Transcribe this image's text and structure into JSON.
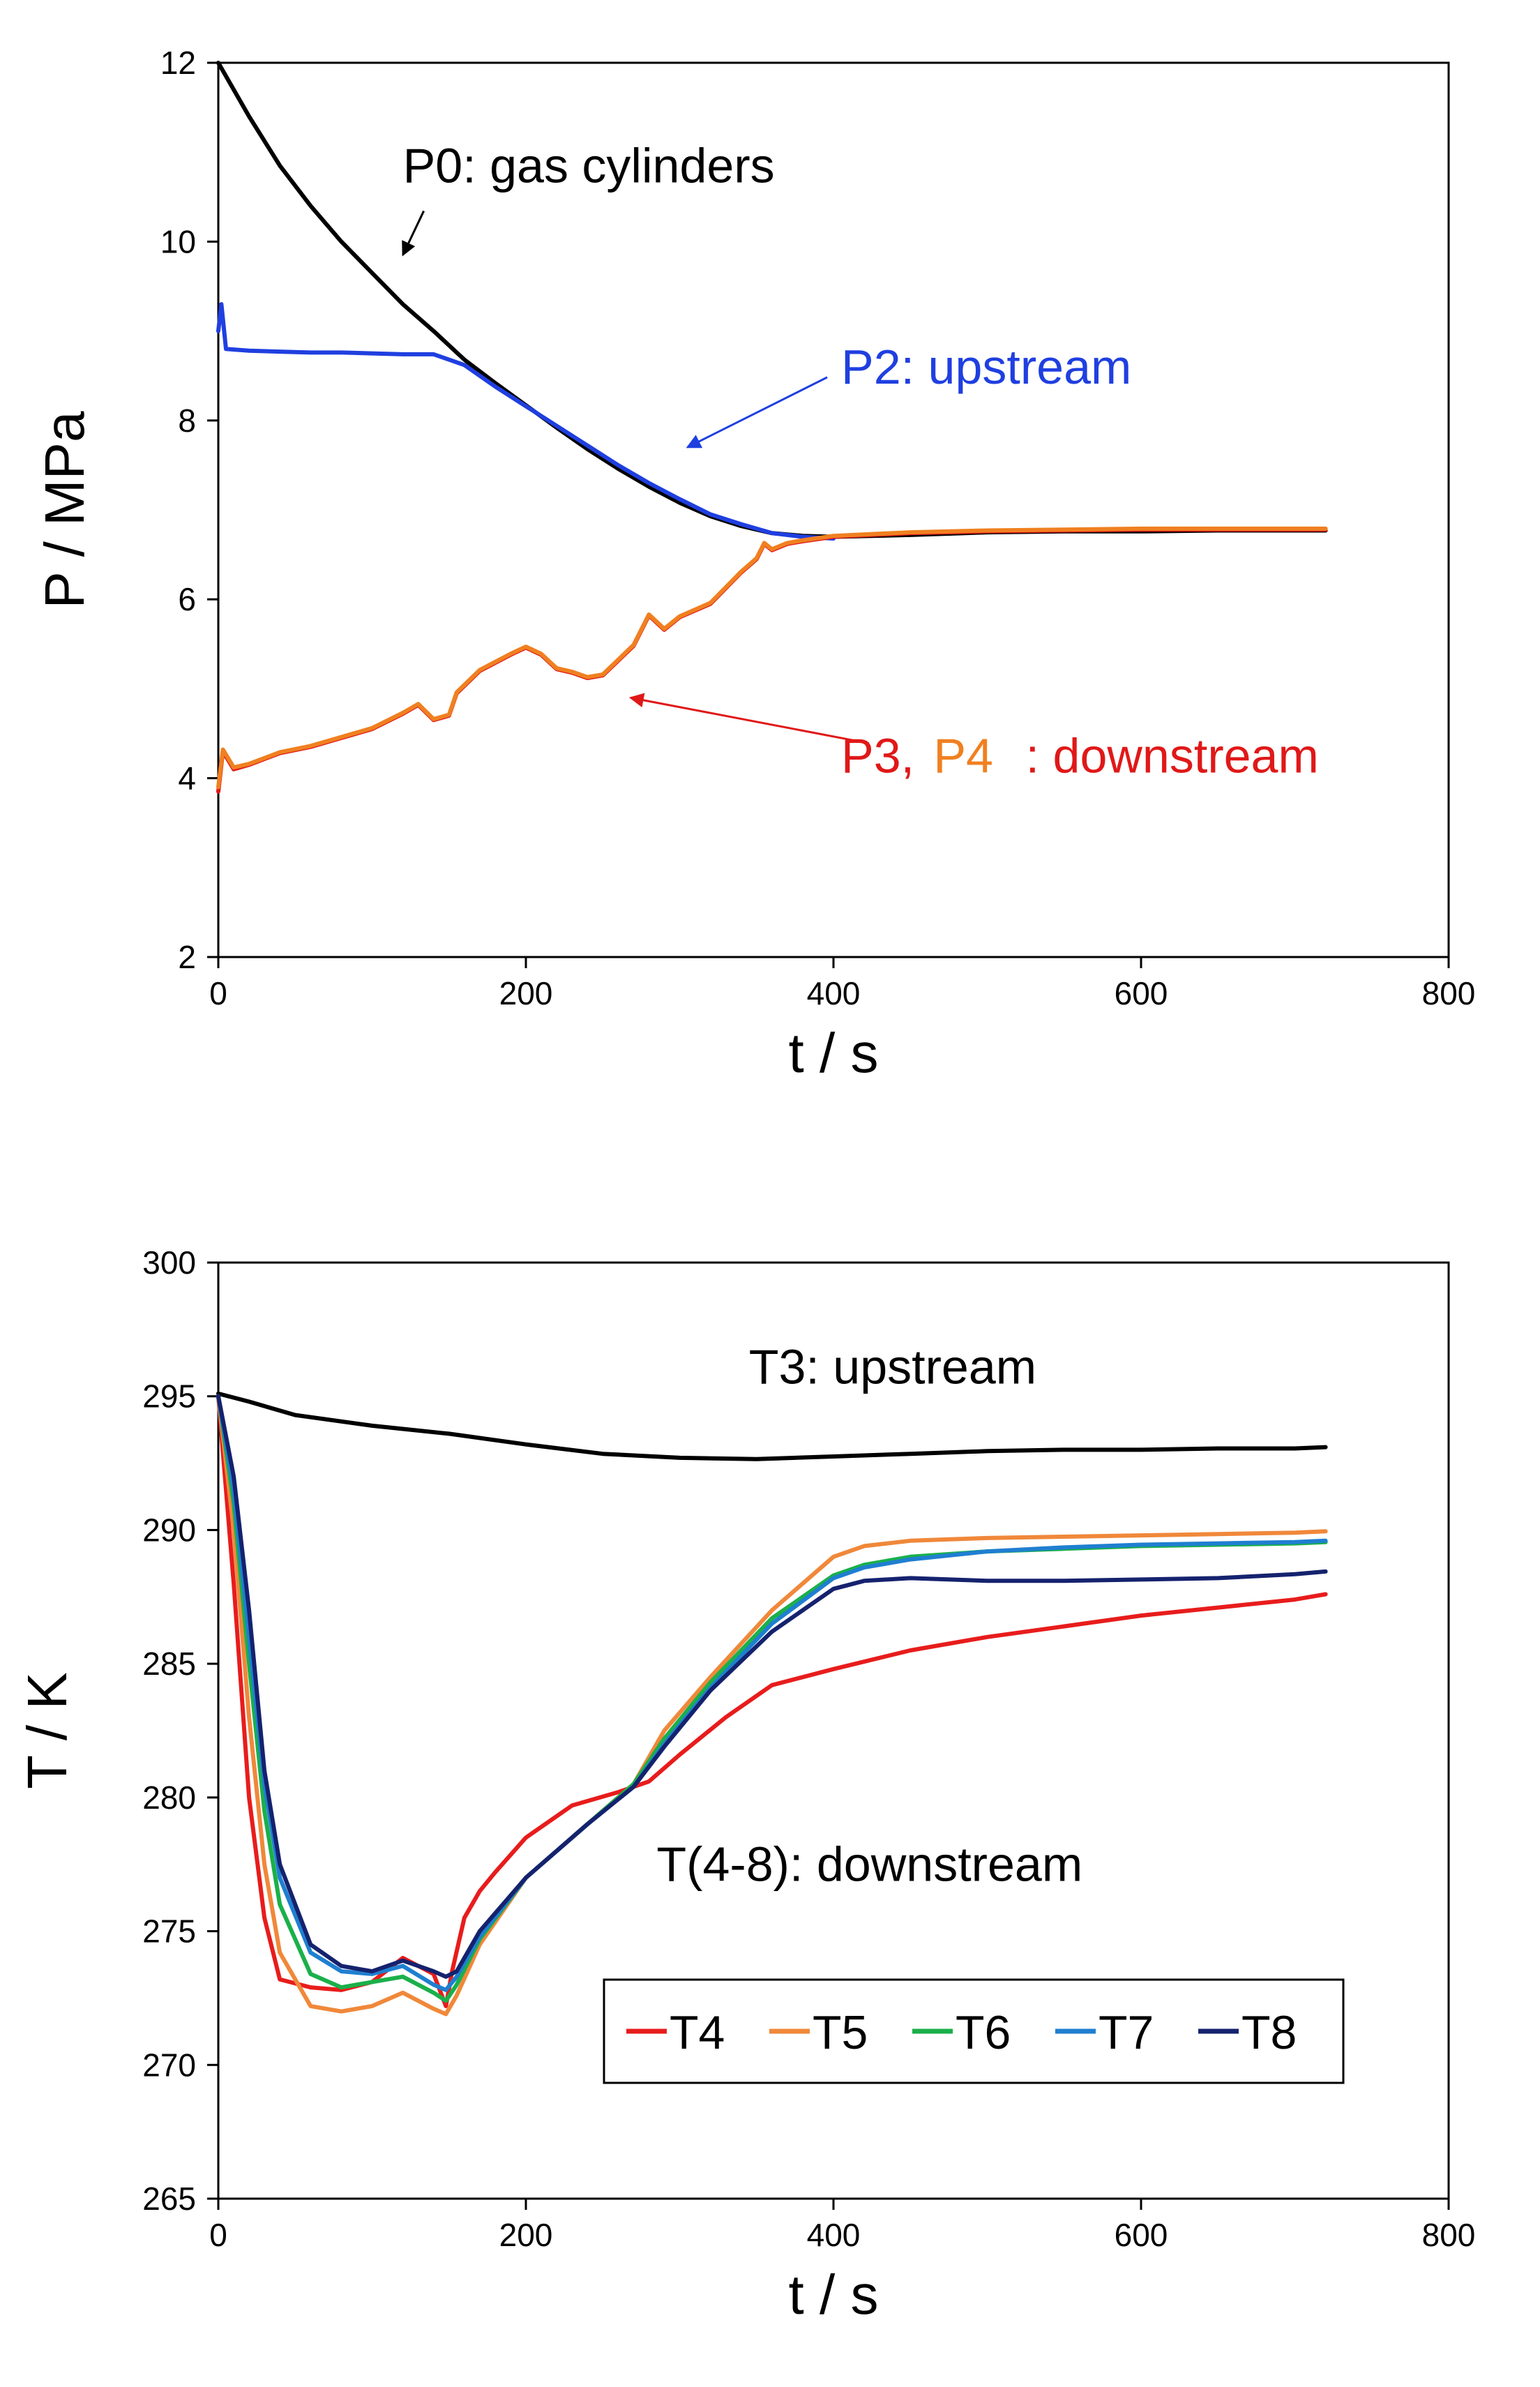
{
  "chart_data": [
    {
      "type": "line",
      "xlabel": "t / s",
      "ylabel": "P / MPa",
      "xlim": [
        0,
        800
      ],
      "ylim": [
        2,
        12
      ],
      "x_ticks": [
        0,
        200,
        400,
        600,
        800
      ],
      "y_ticks": [
        2,
        4,
        6,
        8,
        10,
        12
      ],
      "grid": false,
      "series": [
        {
          "name": "P0",
          "color": "#000000",
          "x": [
            0,
            20,
            40,
            60,
            80,
            100,
            120,
            140,
            160,
            180,
            200,
            220,
            240,
            260,
            280,
            300,
            320,
            340,
            360,
            380,
            400,
            450,
            500,
            550,
            600,
            650,
            700,
            720
          ],
          "y": [
            12.0,
            11.4,
            10.85,
            10.4,
            10.0,
            9.65,
            9.3,
            9.0,
            8.68,
            8.42,
            8.17,
            7.92,
            7.68,
            7.46,
            7.26,
            7.08,
            6.93,
            6.82,
            6.74,
            6.71,
            6.7,
            6.72,
            6.75,
            6.76,
            6.76,
            6.77,
            6.77,
            6.77
          ]
        },
        {
          "name": "P2",
          "color": "#1f3fe0",
          "x": [
            0,
            2,
            5,
            20,
            40,
            60,
            80,
            100,
            120,
            140,
            150,
            160,
            180,
            200,
            220,
            240,
            260,
            280,
            300,
            320,
            340,
            360,
            380,
            400
          ],
          "y": [
            9.0,
            9.3,
            8.8,
            8.78,
            8.77,
            8.76,
            8.76,
            8.75,
            8.74,
            8.74,
            8.68,
            8.62,
            8.38,
            8.16,
            7.94,
            7.72,
            7.5,
            7.3,
            7.12,
            6.95,
            6.84,
            6.74,
            6.7,
            6.68
          ]
        },
        {
          "name": "P3",
          "color": "#e01818",
          "x": [
            0,
            3,
            10,
            20,
            40,
            60,
            80,
            100,
            120,
            130,
            140,
            150,
            155,
            170,
            190,
            200,
            210,
            220,
            230,
            240,
            250,
            270,
            280,
            290,
            300,
            320,
            340,
            350,
            355,
            360,
            370,
            380,
            400,
            450,
            500,
            550,
            600,
            650,
            700,
            720
          ],
          "y": [
            3.85,
            4.3,
            4.1,
            4.15,
            4.28,
            4.35,
            4.45,
            4.55,
            4.72,
            4.82,
            4.65,
            4.7,
            4.95,
            5.2,
            5.38,
            5.46,
            5.38,
            5.22,
            5.18,
            5.12,
            5.15,
            5.48,
            5.82,
            5.66,
            5.8,
            5.95,
            6.3,
            6.45,
            6.62,
            6.55,
            6.62,
            6.65,
            6.7,
            6.74,
            6.76,
            6.77,
            6.78,
            6.78,
            6.78,
            6.78
          ]
        },
        {
          "name": "P4",
          "color": "#f08020",
          "x": [
            0,
            3,
            10,
            20,
            40,
            60,
            80,
            100,
            120,
            130,
            140,
            150,
            155,
            170,
            190,
            200,
            210,
            220,
            230,
            240,
            250,
            270,
            280,
            290,
            300,
            320,
            340,
            350,
            355,
            360,
            370,
            380,
            400,
            450,
            500,
            550,
            600,
            650,
            700,
            720
          ],
          "y": [
            3.9,
            4.32,
            4.12,
            4.16,
            4.29,
            4.36,
            4.46,
            4.56,
            4.73,
            4.83,
            4.66,
            4.71,
            4.96,
            5.21,
            5.39,
            5.47,
            5.39,
            5.23,
            5.19,
            5.13,
            5.16,
            5.49,
            5.83,
            5.67,
            5.81,
            5.96,
            6.31,
            6.46,
            6.63,
            6.56,
            6.63,
            6.66,
            6.71,
            6.75,
            6.77,
            6.78,
            6.79,
            6.79,
            6.79,
            6.79
          ]
        }
      ],
      "annotations": [
        {
          "text": "P0: gas cylinders",
          "color": "#000000",
          "x": 120,
          "y": 10.85,
          "arrow_to": [
            120,
            9.85
          ]
        },
        {
          "text": "P2: upstream",
          "color": "#1f3fe0",
          "x": 405,
          "y": 8.6,
          "arrow_to": [
            305,
            7.7
          ]
        },
        {
          "text": "P3,",
          "color": "#e01818",
          "x": 405,
          "y": 4.25
        },
        {
          "text": "P4",
          "color": "#f08020",
          "x": 465,
          "y": 4.25
        },
        {
          "text": ": downstream",
          "color": "#e01818",
          "x": 525,
          "y": 4.25,
          "arrow_to": [
            268,
            4.9
          ]
        }
      ]
    },
    {
      "type": "line",
      "xlabel": "t / s",
      "ylabel": "T / K",
      "xlim": [
        0,
        800
      ],
      "ylim": [
        265,
        300
      ],
      "x_ticks": [
        0,
        200,
        400,
        600,
        800
      ],
      "y_ticks": [
        265,
        270,
        275,
        280,
        285,
        290,
        295,
        300
      ],
      "grid": false,
      "legend_position": "bottom-right",
      "series": [
        {
          "name": "T3",
          "color": "#000000",
          "x": [
            0,
            20,
            50,
            100,
            150,
            200,
            250,
            300,
            350,
            400,
            450,
            500,
            550,
            600,
            650,
            700,
            720
          ],
          "y": [
            295.1,
            294.8,
            294.3,
            293.9,
            293.6,
            293.2,
            292.85,
            292.7,
            292.65,
            292.75,
            292.85,
            292.95,
            293.0,
            293.0,
            293.05,
            293.05,
            293.1
          ]
        },
        {
          "name": "T4",
          "color": "#e81c1c",
          "x": [
            0,
            10,
            20,
            30,
            40,
            60,
            80,
            100,
            120,
            140,
            148,
            152,
            160,
            170,
            180,
            200,
            230,
            260,
            280,
            300,
            330,
            360,
            400,
            450,
            500,
            550,
            600,
            650,
            700,
            720
          ],
          "y": [
            295.0,
            288.0,
            280.0,
            275.5,
            273.2,
            272.9,
            272.8,
            273.1,
            274.0,
            273.4,
            272.2,
            273.5,
            275.5,
            276.5,
            277.2,
            278.5,
            279.7,
            280.2,
            280.6,
            281.6,
            283.0,
            284.2,
            284.8,
            285.5,
            286.0,
            286.4,
            286.8,
            287.1,
            287.4,
            287.6
          ]
        },
        {
          "name": "T5",
          "color": "#f0883a",
          "x": [
            0,
            10,
            20,
            30,
            40,
            60,
            80,
            100,
            120,
            140,
            148,
            155,
            170,
            200,
            240,
            270,
            290,
            320,
            360,
            400,
            420,
            450,
            500,
            550,
            600,
            650,
            700,
            720
          ],
          "y": [
            295.0,
            290.0,
            283.0,
            277.5,
            274.2,
            272.2,
            272.0,
            272.2,
            272.7,
            272.1,
            271.9,
            272.6,
            274.5,
            277.0,
            279.0,
            280.5,
            282.5,
            284.5,
            287.0,
            289.0,
            289.4,
            289.6,
            289.7,
            289.75,
            289.8,
            289.85,
            289.9,
            289.95
          ]
        },
        {
          "name": "T6",
          "color": "#1ab04a",
          "x": [
            0,
            10,
            20,
            30,
            40,
            60,
            80,
            100,
            120,
            140,
            148,
            155,
            170,
            200,
            240,
            270,
            290,
            320,
            360,
            400,
            420,
            450,
            500,
            550,
            600,
            650,
            700,
            720
          ],
          "y": [
            295.0,
            291.0,
            285.0,
            279.5,
            276.0,
            273.4,
            272.9,
            273.1,
            273.3,
            272.7,
            272.4,
            273.0,
            274.7,
            277.0,
            279.0,
            280.5,
            282.2,
            284.3,
            286.7,
            288.3,
            288.7,
            289.0,
            289.2,
            289.3,
            289.4,
            289.45,
            289.5,
            289.55
          ]
        },
        {
          "name": "T7",
          "color": "#1f7fd0",
          "x": [
            0,
            10,
            20,
            30,
            40,
            60,
            80,
            100,
            120,
            140,
            148,
            155,
            170,
            200,
            240,
            270,
            290,
            320,
            360,
            400,
            420,
            450,
            500,
            550,
            600,
            650,
            700,
            720
          ],
          "y": [
            295.0,
            291.5,
            286.0,
            280.5,
            277.0,
            274.2,
            273.5,
            273.4,
            273.7,
            273.0,
            272.8,
            273.3,
            274.8,
            277.0,
            279.0,
            280.4,
            282.0,
            284.1,
            286.5,
            288.2,
            288.6,
            288.9,
            289.2,
            289.35,
            289.45,
            289.5,
            289.55,
            289.6
          ]
        },
        {
          "name": "T8",
          "color": "#15226e",
          "x": [
            0,
            10,
            20,
            30,
            40,
            60,
            80,
            100,
            120,
            140,
            148,
            155,
            170,
            200,
            240,
            270,
            290,
            320,
            360,
            400,
            420,
            450,
            500,
            550,
            600,
            650,
            700,
            720
          ],
          "y": [
            295.0,
            292.0,
            287.0,
            281.0,
            277.5,
            274.5,
            273.7,
            273.5,
            273.9,
            273.5,
            273.3,
            273.5,
            275.0,
            277.0,
            279.0,
            280.4,
            281.9,
            284.0,
            286.2,
            287.8,
            288.1,
            288.2,
            288.1,
            288.1,
            288.15,
            288.2,
            288.35,
            288.45
          ]
        }
      ],
      "annotations": [
        {
          "text": "T3: upstream",
          "color": "#000000",
          "x": 345,
          "y": 296.1
        },
        {
          "text": "T(4-8): downstream",
          "color": "#000000",
          "x": 285,
          "y": 277.5
        }
      ]
    }
  ]
}
